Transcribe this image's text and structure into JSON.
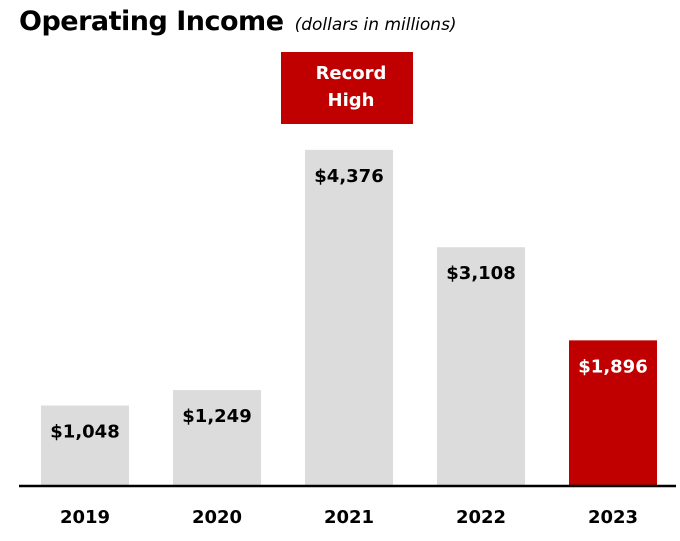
{
  "header": {
    "title": "Operating Income",
    "subtitle": "(dollars in millions)"
  },
  "colors": {
    "bar_default": "#dcdcdc",
    "bar_highlight": "#c00000",
    "label_default": "#000000",
    "label_highlight": "#ffffff",
    "axis": "#000000",
    "badge_bg": "#c00000",
    "badge_text": "#ffffff"
  },
  "chart_data": {
    "type": "bar",
    "title": "Operating Income",
    "subtitle": "(dollars in millions)",
    "categories": [
      "2019",
      "2020",
      "2021",
      "2022",
      "2023"
    ],
    "values": [
      1048,
      1249,
      4376,
      3108,
      1896
    ],
    "value_labels": [
      "$1,048",
      "$1,249",
      "$4,376",
      "$3,108",
      "$1,896"
    ],
    "highlight_category": "2023",
    "annotation": {
      "text_lines": [
        "Record",
        "High"
      ],
      "category": "2021"
    },
    "ylim": [
      0,
      4400
    ],
    "grid": false,
    "legend": "none"
  }
}
